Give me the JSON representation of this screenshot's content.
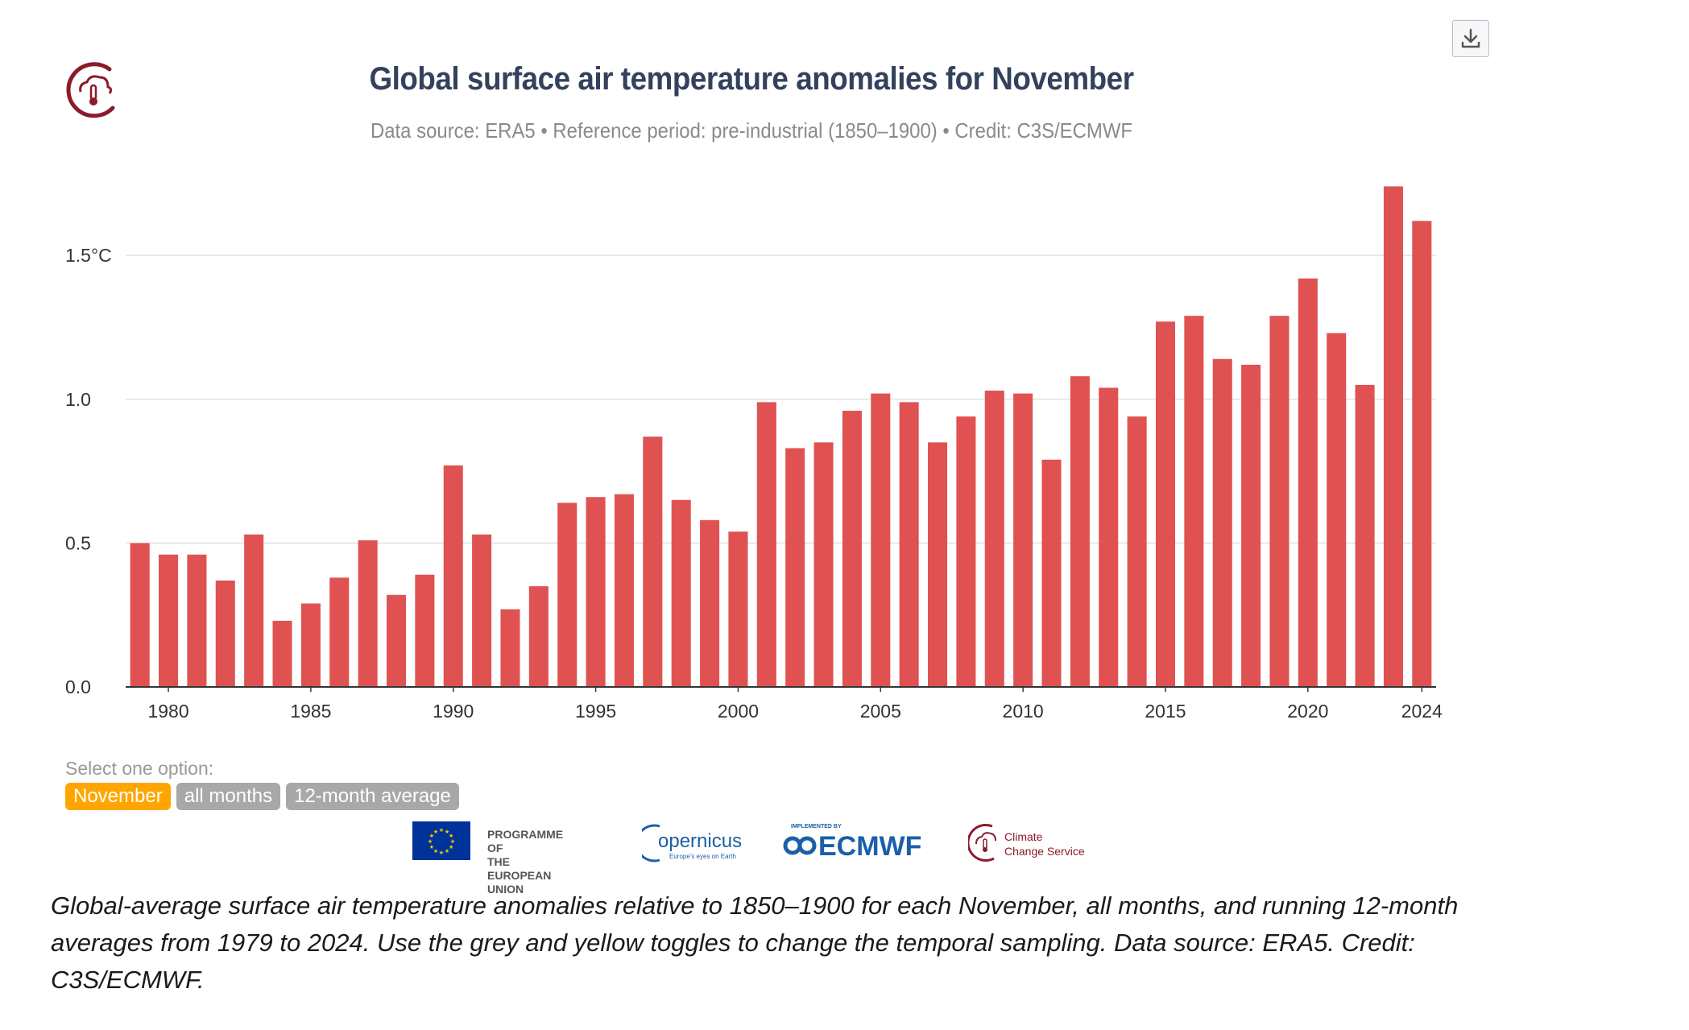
{
  "header": {
    "title": "Global surface air temperature anomalies for November",
    "subtitle": "Data source: ERA5 • Reference period: pre-industrial (1850–1900) • Credit: C3S/ECMWF"
  },
  "controls": {
    "select_label": "Select one option:",
    "options": [
      "November",
      "all months",
      "12-month average"
    ],
    "selected": "November"
  },
  "partners": {
    "eu_line1": "PROGRAMME OF",
    "eu_line2": "THE EUROPEAN UNION",
    "copernicus_name": "opernicus",
    "copernicus_tagline": "Europe's eyes on Earth",
    "ecmwf_small": "IMPLEMENTED BY",
    "ecmwf_name": "ECMWF",
    "c3s_line1": "Climate",
    "c3s_line2": "Change Service"
  },
  "caption": "Global-average surface air temperature anomalies relative to 1850–1900 for each November, all months, and running 12-month averages from 1979 to 2024. Use the grey and yellow toggles to change the temporal sampling. Data source: ERA5. Credit: C3S/ECMWF.",
  "colors": {
    "bar": "#e05252",
    "title": "#33415c",
    "active_toggle": "#ffa500",
    "inactive_toggle": "#a8a8a8",
    "brand": "#8b1a2b"
  },
  "chart_data": {
    "type": "bar",
    "x": [
      1979,
      1980,
      1981,
      1982,
      1983,
      1984,
      1985,
      1986,
      1987,
      1988,
      1989,
      1990,
      1991,
      1992,
      1993,
      1994,
      1995,
      1996,
      1997,
      1998,
      1999,
      2000,
      2001,
      2002,
      2003,
      2004,
      2005,
      2006,
      2007,
      2008,
      2009,
      2010,
      2011,
      2012,
      2013,
      2014,
      2015,
      2016,
      2017,
      2018,
      2019,
      2020,
      2021,
      2022,
      2023,
      2024
    ],
    "values": [
      0.5,
      0.46,
      0.46,
      0.37,
      0.53,
      0.23,
      0.29,
      0.38,
      0.51,
      0.32,
      0.39,
      0.77,
      0.53,
      0.27,
      0.35,
      0.64,
      0.66,
      0.67,
      0.87,
      0.65,
      0.58,
      0.54,
      0.99,
      0.83,
      0.85,
      0.96,
      1.02,
      0.99,
      0.85,
      0.94,
      1.03,
      1.02,
      0.79,
      1.08,
      1.04,
      0.94,
      1.27,
      1.29,
      1.14,
      1.12,
      1.29,
      1.42,
      1.23,
      1.05,
      1.74,
      1.62
    ],
    "x_tick_labels": [
      "1980",
      "1985",
      "1990",
      "1995",
      "2000",
      "2005",
      "2010",
      "2015",
      "2020",
      "2024"
    ],
    "y_ticks": [
      0,
      0.5,
      1.0,
      1.5
    ],
    "y_tick_labels": [
      "0.0",
      "0.5",
      "1.0",
      "1.5°C"
    ],
    "ylim": [
      0,
      1.8
    ],
    "grid": true,
    "xlabel": "",
    "ylabel": ""
  }
}
